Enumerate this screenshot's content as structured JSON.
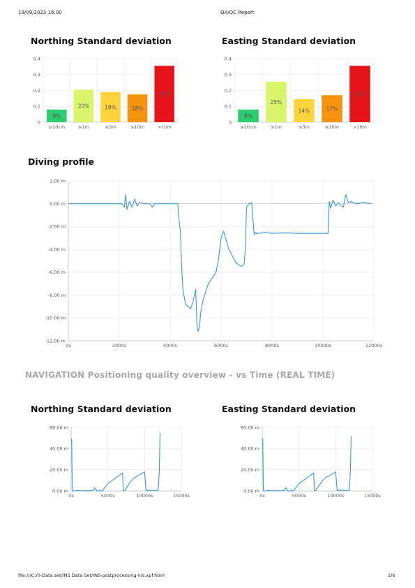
{
  "header": {
    "datetime": "19/09/2023 16:00",
    "report_title": "QA/QC Report"
  },
  "footer": {
    "path": "file:///C:/0-Data set/INS Data Set/INS-postprocessing-ins.xpf.html",
    "page": "2/6"
  },
  "section_title": "NAVIGATION Positioning quality overview - vs Time (REAL TIME)",
  "colors": {
    "line": "#3b97d9",
    "grid": "#e4e4e4",
    "axis": "#b0b0b0"
  },
  "chart_data": [
    {
      "id": "northing-bar",
      "type": "bar",
      "title": "Northing Standard deviation",
      "categories": [
        "≤10cm",
        "≤1m",
        "≤3m",
        "≤10m",
        ">10m"
      ],
      "values": [
        0.08,
        0.205,
        0.19,
        0.175,
        0.355
      ],
      "data_labels": [
        "8%",
        "20%",
        "19%",
        "18%",
        "35%"
      ],
      "colors": [
        "#2ecc71",
        "#d9f56a",
        "#ffd33b",
        "#f5930f",
        "#e8141c"
      ],
      "ylim": [
        0,
        0.4
      ],
      "yticks": [
        "0",
        "0.1",
        "0.2",
        "0.3",
        "0.4"
      ],
      "grid": true
    },
    {
      "id": "easting-bar",
      "type": "bar",
      "title": "Easting Standard deviation",
      "categories": [
        "≤10cm",
        "≤1m",
        "≤3m",
        "≤10m",
        ">10m"
      ],
      "values": [
        0.08,
        0.255,
        0.145,
        0.17,
        0.355
      ],
      "data_labels": [
        "8%",
        "25%",
        "14%",
        "17%",
        "35%"
      ],
      "colors": [
        "#2ecc71",
        "#d9f56a",
        "#ffd33b",
        "#f5930f",
        "#e8141c"
      ],
      "ylim": [
        0,
        0.4
      ],
      "yticks": [
        "0",
        "0.1",
        "0.2",
        "0.3",
        "0.4"
      ],
      "grid": true
    },
    {
      "id": "diving-profile",
      "type": "line",
      "title": "Diving profile",
      "xlim": [
        0,
        12000
      ],
      "ylim": [
        -12,
        2
      ],
      "xticks": [
        "0s",
        "2000s",
        "4000s",
        "6000s",
        "8000s",
        "10000s",
        "12000s"
      ],
      "yticks": [
        "2.00 m",
        "0.00 m",
        "-2.00 m",
        "-4.00 m",
        "-6.00 m",
        "-8.00 m",
        "-10.00 m",
        "-12.00 m"
      ],
      "x": [
        0,
        2100,
        2200,
        2250,
        2300,
        2400,
        2500,
        2600,
        2700,
        2800,
        3000,
        3200,
        3300,
        3400,
        4300,
        4350,
        4400,
        4450,
        4500,
        4600,
        4800,
        4900,
        5000,
        5050,
        5100,
        5150,
        5200,
        5300,
        5500,
        5800,
        5900,
        6000,
        6100,
        6300,
        6600,
        6800,
        6900,
        6950,
        7000,
        7100,
        7200,
        7300,
        7350,
        7400,
        7500,
        7700,
        8000,
        8500,
        9000,
        9500,
        10000,
        10200,
        10250,
        10300,
        10400,
        10500,
        10600,
        10800,
        10900,
        11000,
        11100,
        11300,
        11600,
        11900
      ],
      "y": [
        0,
        0,
        -0.3,
        0.8,
        -0.5,
        0.2,
        -0.3,
        0.4,
        -0.2,
        0.1,
        0,
        0,
        -0.3,
        0,
        0,
        -1.5,
        -2.5,
        -5.5,
        -7.5,
        -8.8,
        -9.2,
        -8.5,
        -7.5,
        -10.5,
        -11.2,
        -10.8,
        -9.5,
        -8.4,
        -7.0,
        -6.0,
        -4.8,
        -3.0,
        -2.4,
        -4.0,
        -5.2,
        -5.5,
        -5.3,
        -4.0,
        -0.3,
        0,
        0.1,
        -2.7,
        -2.5,
        -2.6,
        -2.6,
        -2.5,
        -2.6,
        -2.55,
        -2.6,
        -2.6,
        -2.6,
        -2.6,
        0.2,
        -0.4,
        0.3,
        -0.2,
        0.1,
        -0.3,
        0.8,
        0.1,
        0.2,
        0,
        0.1,
        0
      ]
    },
    {
      "id": "northing-time",
      "type": "line",
      "title": "Northing Standard deviation",
      "xlim": [
        0,
        15000
      ],
      "ylim": [
        0,
        60
      ],
      "xticks": [
        "0s",
        "5000s",
        "10000s",
        "15000s"
      ],
      "yticks": [
        "60.00 m",
        "40.00 m",
        "20.00 m",
        "0.00 m"
      ],
      "x": [
        0,
        80,
        150,
        200,
        500,
        800,
        1500,
        2000,
        2500,
        3000,
        3200,
        3500,
        4000,
        4200,
        4300,
        5000,
        6000,
        7000,
        7100,
        7300,
        8000,
        8500,
        9000,
        10000,
        10200,
        10300,
        10500,
        11000,
        11500,
        11800,
        11900,
        12000,
        12100
      ],
      "y": [
        49,
        49,
        0,
        0,
        0,
        0.5,
        0,
        0.3,
        0,
        0.5,
        3,
        0,
        0.2,
        0,
        0.5,
        7,
        12,
        17,
        0,
        0.5,
        8,
        12,
        14,
        18,
        0.5,
        0.5,
        0.5,
        0.5,
        0.5,
        0.3,
        5,
        20,
        55
      ]
    },
    {
      "id": "easting-time",
      "type": "line",
      "title": "Easting Standard deviation",
      "xlim": [
        0,
        15000
      ],
      "ylim": [
        0,
        60
      ],
      "xticks": [
        "0s",
        "5000s",
        "10000s",
        "15000s"
      ],
      "yticks": [
        "60.00 m",
        "40.00 m",
        "20.00 m",
        "0.00 m"
      ],
      "x": [
        0,
        80,
        150,
        200,
        500,
        800,
        1500,
        2000,
        2500,
        3000,
        3200,
        3500,
        4000,
        4200,
        4300,
        5000,
        6000,
        7000,
        7100,
        7300,
        8000,
        8500,
        9000,
        10000,
        10200,
        10300,
        10500,
        11000,
        11500,
        11800,
        11900,
        12000,
        12100
      ],
      "y": [
        49,
        49,
        0,
        0,
        0,
        0.5,
        0,
        0.3,
        0,
        0.5,
        3,
        0,
        0.2,
        0,
        0.5,
        7,
        12,
        17,
        0,
        0.5,
        8,
        12,
        14,
        18,
        0.5,
        0.5,
        0.5,
        0.5,
        0.5,
        0.3,
        5,
        20,
        52
      ]
    }
  ]
}
